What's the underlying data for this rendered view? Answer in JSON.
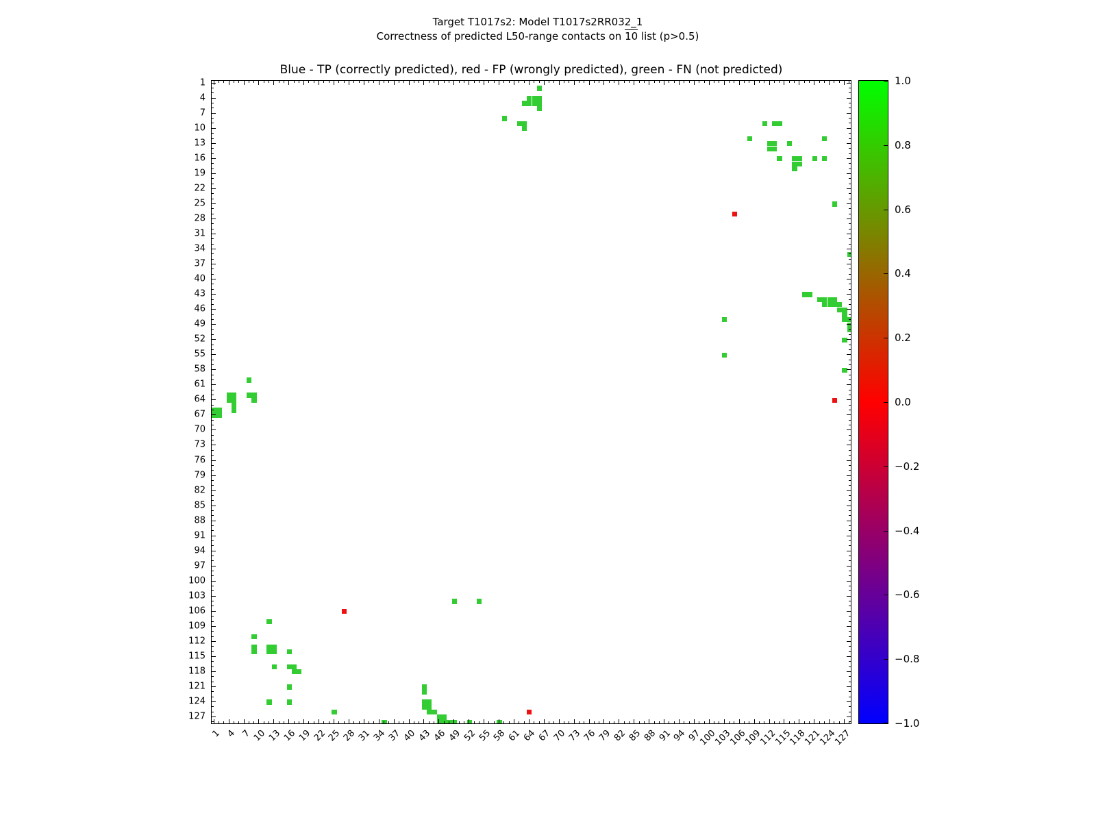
{
  "figure": {
    "title_line1": "Target T1017s2: Model T1017s2RR032_1",
    "title_line2_prefix": "Correctness of predicted L50-range contacts on ",
    "title_line2_overline": "10",
    "title_line2_suffix": " list (p>0.5)",
    "axes_title": "Blue - TP (correctly predicted), red - FP (wrongly predicted), green - FN (not predicted)"
  },
  "chart_data": {
    "type": "scatter",
    "title": "Blue - TP (correctly predicted), red - FP (wrongly predicted), green - FN (not predicted)",
    "xlabel": "",
    "ylabel": "",
    "xlim": [
      0.5,
      128.5
    ],
    "ylim": [
      128.5,
      0.5
    ],
    "y_axis_inverted": true,
    "grid": false,
    "x_tick_labels": [
      "1",
      "4",
      "7",
      "10",
      "13",
      "16",
      "19",
      "22",
      "25",
      "28",
      "31",
      "34",
      "37",
      "40",
      "43",
      "46",
      "49",
      "52",
      "55",
      "58",
      "61",
      "64",
      "67",
      "70",
      "73",
      "76",
      "79",
      "82",
      "85",
      "88",
      "91",
      "94",
      "97",
      "100",
      "103",
      "106",
      "109",
      "112",
      "115",
      "118",
      "121",
      "124",
      "127"
    ],
    "y_tick_labels": [
      "1",
      "4",
      "7",
      "10",
      "13",
      "16",
      "19",
      "22",
      "25",
      "28",
      "31",
      "34",
      "37",
      "40",
      "43",
      "46",
      "49",
      "52",
      "55",
      "58",
      "61",
      "64",
      "67",
      "70",
      "73",
      "76",
      "79",
      "82",
      "85",
      "88",
      "91",
      "94",
      "97",
      "100",
      "103",
      "106",
      "109",
      "112",
      "115",
      "118",
      "121",
      "124",
      "127"
    ],
    "series": [
      {
        "name": "TP (correctly predicted)",
        "color": "#0000ff",
        "points": []
      },
      {
        "name": "FP (wrongly predicted)",
        "color": "#ee1111",
        "points": [
          [
            105,
            27
          ],
          [
            125,
            64
          ],
          [
            27,
            106
          ],
          [
            64,
            126
          ]
        ]
      },
      {
        "name": "FN (not predicted)",
        "color": "#33cc33",
        "points": [
          [
            66,
            2
          ],
          [
            64,
            4
          ],
          [
            65,
            4
          ],
          [
            66,
            4
          ],
          [
            63,
            5
          ],
          [
            64,
            5
          ],
          [
            65,
            5
          ],
          [
            66,
            5
          ],
          [
            66,
            6
          ],
          [
            59,
            8
          ],
          [
            62,
            9
          ],
          [
            63,
            9
          ],
          [
            63,
            10
          ],
          [
            111,
            9
          ],
          [
            113,
            9
          ],
          [
            114,
            9
          ],
          [
            108,
            12
          ],
          [
            123,
            12
          ],
          [
            112,
            13
          ],
          [
            113,
            13
          ],
          [
            116,
            13
          ],
          [
            112,
            14
          ],
          [
            113,
            14
          ],
          [
            114,
            16
          ],
          [
            117,
            16
          ],
          [
            118,
            16
          ],
          [
            121,
            16
          ],
          [
            123,
            16
          ],
          [
            117,
            17
          ],
          [
            118,
            17
          ],
          [
            117,
            18
          ],
          [
            125,
            25
          ],
          [
            128,
            35
          ],
          [
            119,
            43
          ],
          [
            120,
            43
          ],
          [
            122,
            44
          ],
          [
            123,
            44
          ],
          [
            124,
            44
          ],
          [
            125,
            44
          ],
          [
            123,
            45
          ],
          [
            124,
            45
          ],
          [
            125,
            45
          ],
          [
            126,
            45
          ],
          [
            126,
            46
          ],
          [
            127,
            46
          ],
          [
            127,
            47
          ],
          [
            103,
            48
          ],
          [
            127,
            48
          ],
          [
            128,
            48
          ],
          [
            128,
            49
          ],
          [
            128,
            50
          ],
          [
            127,
            52
          ],
          [
            103,
            55
          ],
          [
            127,
            58
          ],
          [
            8,
            60
          ],
          [
            4,
            63
          ],
          [
            5,
            63
          ],
          [
            8,
            63
          ],
          [
            9,
            63
          ],
          [
            4,
            64
          ],
          [
            5,
            64
          ],
          [
            9,
            64
          ],
          [
            5,
            65
          ],
          [
            1,
            66
          ],
          [
            2,
            66
          ],
          [
            5,
            66
          ],
          [
            1,
            67
          ],
          [
            2,
            67
          ],
          [
            49,
            104
          ],
          [
            54,
            104
          ],
          [
            12,
            108
          ],
          [
            9,
            111
          ],
          [
            9,
            113
          ],
          [
            12,
            113
          ],
          [
            13,
            113
          ],
          [
            9,
            114
          ],
          [
            12,
            114
          ],
          [
            13,
            114
          ],
          [
            16,
            114
          ],
          [
            13,
            117
          ],
          [
            16,
            117
          ],
          [
            17,
            117
          ],
          [
            17,
            118
          ],
          [
            18,
            118
          ],
          [
            16,
            121
          ],
          [
            43,
            121
          ],
          [
            43,
            122
          ],
          [
            12,
            124
          ],
          [
            16,
            124
          ],
          [
            43,
            124
          ],
          [
            44,
            124
          ],
          [
            43,
            125
          ],
          [
            44,
            125
          ],
          [
            25,
            126
          ],
          [
            44,
            126
          ],
          [
            45,
            126
          ],
          [
            46,
            127
          ],
          [
            47,
            127
          ],
          [
            35,
            128
          ],
          [
            46,
            128
          ],
          [
            47,
            128
          ],
          [
            48,
            128
          ],
          [
            49,
            128
          ],
          [
            52,
            128
          ],
          [
            58,
            128
          ]
        ]
      }
    ],
    "colorbar": {
      "min": -1.0,
      "max": 1.0,
      "tick_labels": [
        "1.0",
        "0.8",
        "0.6",
        "0.4",
        "0.2",
        "0.0",
        "−0.2",
        "−0.4",
        "−0.6",
        "−0.8",
        "−1.0"
      ],
      "gradient_stops": [
        {
          "pos": "0%",
          "color": "#00ff00"
        },
        {
          "pos": "50%",
          "color": "#ff0000"
        },
        {
          "pos": "100%",
          "color": "#0000ff"
        }
      ]
    }
  }
}
